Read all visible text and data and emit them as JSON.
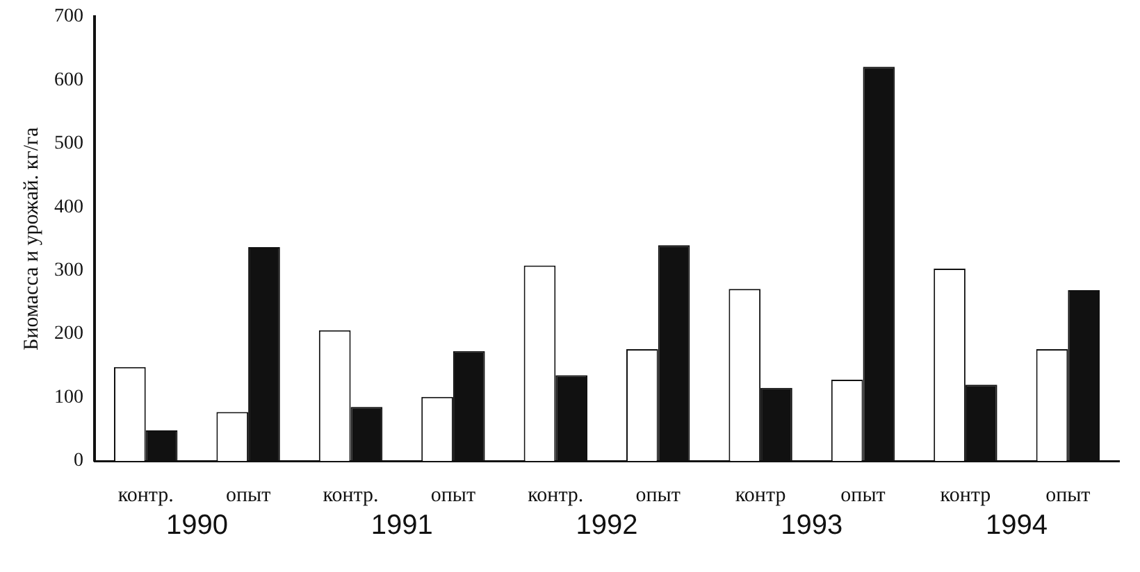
{
  "chart_data": {
    "type": "bar",
    "ylabel": "Биомасса и урожай. кг/га",
    "categories": [
      "контр.",
      "опыт",
      "контр.",
      "опыт",
      "контр.",
      "опыт",
      "контр",
      "опыт",
      "контр",
      "опыт"
    ],
    "series": [
      {
        "color": "#ffffff",
        "values": [
          148,
          77,
          206,
          101,
          308,
          176,
          271,
          128,
          303,
          176
        ]
      },
      {
        "color": "#111111",
        "values": [
          48,
          337,
          85,
          173,
          135,
          340,
          115,
          621,
          120,
          269
        ]
      }
    ],
    "ylim": [
      0,
      700
    ],
    "yticks": [
      0,
      100,
      200,
      300,
      400,
      500,
      600,
      700
    ],
    "grid": false,
    "legend": false,
    "annotations": [
      "1990",
      "1991",
      "1992",
      "1993",
      "1994"
    ]
  }
}
